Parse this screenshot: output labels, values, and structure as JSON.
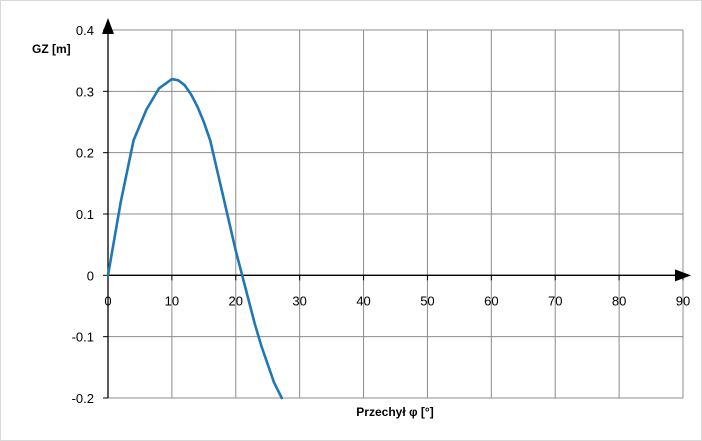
{
  "chart_data": {
    "type": "line",
    "title": "",
    "xlabel": "Przechył φ [°]",
    "ylabel": "GZ [m]",
    "xlim": [
      0,
      90
    ],
    "ylim": [
      -0.2,
      0.4
    ],
    "x_ticks": [
      0,
      10,
      20,
      30,
      40,
      50,
      60,
      70,
      80,
      90
    ],
    "y_ticks": [
      -0.2,
      -0.1,
      0,
      0.1,
      0.2,
      0.3,
      0.4
    ],
    "grid": true,
    "legend": "none",
    "series": [
      {
        "color": "#1f77b4",
        "x": [
          0,
          2,
          4,
          6,
          8,
          10,
          11,
          12,
          13,
          14,
          15,
          16,
          17,
          18,
          19,
          20,
          21,
          22,
          23,
          24,
          25,
          26,
          27.2
        ],
        "y": [
          0,
          0.12,
          0.22,
          0.27,
          0.305,
          0.32,
          0.318,
          0.31,
          0.295,
          0.275,
          0.25,
          0.22,
          0.175,
          0.13,
          0.085,
          0.04,
          0.0,
          -0.04,
          -0.08,
          -0.115,
          -0.145,
          -0.175,
          -0.2
        ]
      }
    ]
  }
}
